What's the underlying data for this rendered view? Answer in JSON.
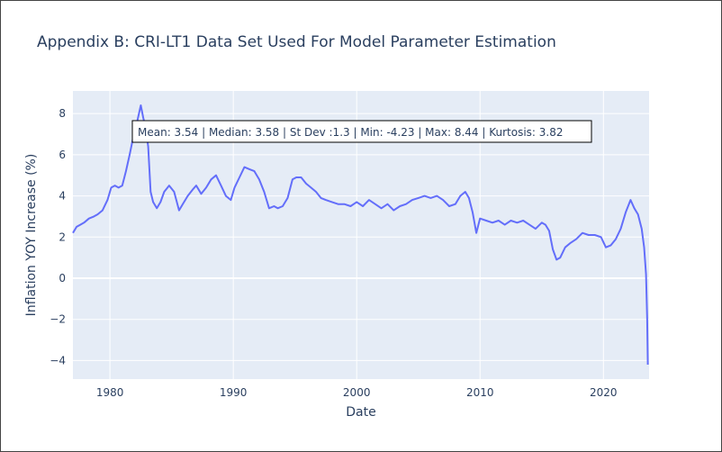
{
  "chart_data": {
    "type": "line",
    "title": "Appendix B: CRI-LT1 Data Set Used For Model Parameter Estimation",
    "xlabel": "Date",
    "ylabel": "Inflation YOY Increase (%)",
    "xlim": [
      1977.0,
      2023.7
    ],
    "ylim": [
      -4.9,
      9.1
    ],
    "xticks": [
      1980,
      1990,
      2000,
      2010,
      2020
    ],
    "yticks": [
      -4,
      -2,
      0,
      2,
      4,
      6,
      8
    ],
    "grid": true,
    "annotation": "Mean: 3.54 | Median: 3.58 | St Dev :1.3 | Min: -4.23 | Max: 8.44 | Kurtosis: 3.82",
    "series": [
      {
        "color": "#636efa",
        "x": [
          1977.0,
          1977.3,
          1977.6,
          1977.9,
          1978.3,
          1978.7,
          1979.0,
          1979.4,
          1979.8,
          1980.1,
          1980.4,
          1980.7,
          1981.0,
          1981.3,
          1981.6,
          1981.9,
          1982.2,
          1982.5,
          1982.7,
          1982.9,
          1983.1,
          1983.3,
          1983.5,
          1983.8,
          1984.1,
          1984.4,
          1984.8,
          1985.2,
          1985.6,
          1985.9,
          1986.3,
          1986.7,
          1987.0,
          1987.4,
          1987.8,
          1988.2,
          1988.6,
          1989.0,
          1989.4,
          1989.8,
          1990.1,
          1990.5,
          1990.9,
          1991.3,
          1991.7,
          1992.1,
          1992.5,
          1992.9,
          1993.3,
          1993.6,
          1994.0,
          1994.4,
          1994.8,
          1995.1,
          1995.5,
          1995.9,
          1996.3,
          1996.7,
          1997.1,
          1997.5,
          1998.0,
          1998.5,
          1999.0,
          1999.5,
          2000.0,
          2000.5,
          2001.0,
          2001.5,
          2002.0,
          2002.5,
          2003.0,
          2003.5,
          2004.0,
          2004.5,
          2005.0,
          2005.5,
          2006.0,
          2006.5,
          2007.0,
          2007.5,
          2008.0,
          2008.4,
          2008.8,
          2009.1,
          2009.4,
          2009.7,
          2010.0,
          2010.5,
          2011.0,
          2011.5,
          2012.0,
          2012.5,
          2013.0,
          2013.5,
          2014.0,
          2014.5,
          2015.0,
          2015.3,
          2015.6,
          2015.9,
          2016.2,
          2016.5,
          2016.9,
          2017.3,
          2017.8,
          2018.3,
          2018.8,
          2019.3,
          2019.8,
          2020.2,
          2020.6,
          2021.0,
          2021.4,
          2021.8,
          2022.2,
          2022.5,
          2022.8,
          2023.1,
          2023.3,
          2023.45,
          2023.55,
          2023.6
        ],
        "values": [
          2.2,
          2.5,
          2.6,
          2.7,
          2.9,
          3.0,
          3.1,
          3.3,
          3.8,
          4.4,
          4.5,
          4.4,
          4.5,
          5.2,
          6.0,
          6.9,
          7.6,
          8.4,
          7.8,
          7.3,
          6.4,
          4.2,
          3.7,
          3.4,
          3.7,
          4.2,
          4.5,
          4.2,
          3.3,
          3.6,
          4.0,
          4.3,
          4.5,
          4.1,
          4.4,
          4.8,
          5.0,
          4.5,
          4.0,
          3.8,
          4.4,
          4.9,
          5.4,
          5.3,
          5.2,
          4.8,
          4.2,
          3.4,
          3.5,
          3.4,
          3.5,
          3.9,
          4.8,
          4.9,
          4.9,
          4.6,
          4.4,
          4.2,
          3.9,
          3.8,
          3.7,
          3.6,
          3.6,
          3.5,
          3.7,
          3.5,
          3.8,
          3.6,
          3.4,
          3.6,
          3.3,
          3.5,
          3.6,
          3.8,
          3.9,
          4.0,
          3.9,
          4.0,
          3.8,
          3.5,
          3.6,
          4.0,
          4.2,
          3.9,
          3.2,
          2.2,
          2.9,
          2.8,
          2.7,
          2.8,
          2.6,
          2.8,
          2.7,
          2.8,
          2.6,
          2.4,
          2.7,
          2.6,
          2.3,
          1.4,
          0.9,
          1.0,
          1.5,
          1.7,
          1.9,
          2.2,
          2.1,
          2.1,
          2.0,
          1.5,
          1.6,
          1.9,
          2.4,
          3.2,
          3.8,
          3.4,
          3.1,
          2.4,
          1.5,
          0.2,
          -2.0,
          -4.2
        ]
      }
    ]
  }
}
